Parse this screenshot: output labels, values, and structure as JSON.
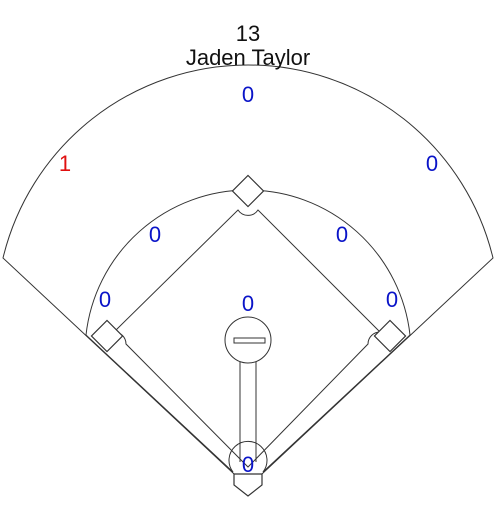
{
  "player": {
    "number": "13",
    "name": "Jaden Taylor"
  },
  "colors": {
    "zero": "#0a14c8",
    "nonzero": "#e01010",
    "line": "#333333"
  },
  "zones": {
    "center_field": "0",
    "left_field": "1",
    "right_field": "0",
    "left_center_infield": "0",
    "right_center_infield": "0",
    "third_base_line": "0",
    "middle_infield": "0",
    "first_base_line": "0",
    "home_plate": "0"
  }
}
